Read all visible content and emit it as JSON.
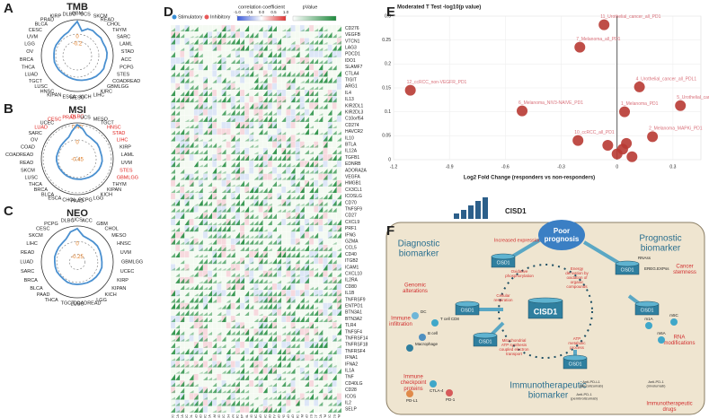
{
  "panel_letters": [
    "A",
    "B",
    "C",
    "D",
    "E",
    "F"
  ],
  "chart_data": [
    {
      "type": "radar",
      "title": "TMB",
      "color": "#4a90d0",
      "rlim": [
        -0.6,
        0.4
      ],
      "rticks": [
        -0.2,
        0
      ],
      "categories": [
        "GBM",
        "UCS",
        "SKCM",
        "READ",
        "CHOL",
        "THYM",
        "SARC",
        "LAML",
        "STAD",
        "ACC",
        "PCPG",
        "STES",
        "COADREAD",
        "GBMLGG",
        "KIRC",
        "LIHC",
        "KICH",
        "MESO",
        "ESCA",
        "KIPAN",
        "HNSC",
        "LUSC",
        "TGCT",
        "LUAD",
        "THCA",
        "BRCA",
        "OV",
        "LGG",
        "UVM",
        "CESC",
        "BLCA",
        "PRAD",
        "KIRP",
        "DLBC"
      ],
      "values": [
        0.35,
        0.1,
        0.2,
        0.22,
        0.2,
        0.22,
        0.2,
        0.22,
        0.23,
        0.22,
        0.2,
        0.22,
        0.2,
        0.18,
        0.15,
        0.12,
        0.1,
        0.08,
        0.06,
        0.05,
        0.04,
        0.04,
        0.05,
        0.05,
        0.06,
        0.05,
        0.05,
        0.06,
        0.06,
        0.05,
        0.06,
        0.08,
        0.1,
        0.2
      ],
      "highlighted": [
        "GBM"
      ]
    },
    {
      "type": "radar",
      "title": "MSI",
      "color": "#4a90d0",
      "rlim": [
        -0.5,
        0.45
      ],
      "rticks": [
        -0.45,
        0,
        {
          "value": 0.4,
          "label": "0.40"
        }
      ],
      "categories": [
        "DLBC",
        "UCS",
        "MESO",
        "TGCT",
        "HNSC",
        "STAD",
        "LIHC",
        "KIRP",
        "LAML",
        "UVM",
        "STES",
        "GBMLGG",
        "THYM",
        "KIPAN",
        "KICH",
        "LGG",
        "PCPG",
        "PAAD",
        "CHOL",
        "ESCA",
        "BLCA",
        "BRCA",
        "THCA",
        "LUSC",
        "SKCM",
        "READ",
        "COADREAD",
        "COAD",
        "OV",
        "SARC",
        "LUAD",
        "UCEC",
        "CESC",
        "PRAD"
      ],
      "values": [
        0.4,
        0.3,
        0.18,
        0.16,
        0.15,
        0.16,
        0.15,
        0.14,
        0.15,
        0.16,
        0.15,
        0.14,
        0.12,
        0.1,
        0.08,
        0.06,
        0.05,
        0.04,
        0.04,
        0.03,
        0.03,
        0.03,
        0.03,
        0.04,
        0.04,
        0.05,
        0.05,
        0.04,
        0.04,
        0.05,
        0.06,
        0.08,
        0.12,
        0.25
      ],
      "highlighted": [
        "PRAD",
        "DLBC",
        "HNSC",
        "STAD",
        "LIHC",
        "STES",
        "GBMLGG",
        "CESC",
        "LUAD"
      ]
    },
    {
      "type": "radar",
      "title": "NEO",
      "color": "#4a90d0",
      "rlim": [
        -0.4,
        0.3
      ],
      "rticks": [
        -0.25,
        0
      ],
      "categories": [
        "UCS",
        "ACC",
        "GBM",
        "CHOL",
        "MESO",
        "HNSC",
        "UVM",
        "GBMLGG",
        "UCEC",
        "KIRP",
        "KIPAN",
        "KICH",
        "LGG",
        "COADREAD",
        "LUSC",
        "TGCT",
        "THCA",
        "PAAD",
        "BLCA",
        "BRCA",
        "SARC",
        "LUAD",
        "READ",
        "LIHC",
        "SKCM",
        "CESC",
        "PCPG",
        "DLBC"
      ],
      "values": [
        0.25,
        0.12,
        0.1,
        0.1,
        0.1,
        0.09,
        0.08,
        0.08,
        0.09,
        0.08,
        0.07,
        0.06,
        0.05,
        0.04,
        0.04,
        0.04,
        0.04,
        0.03,
        0.03,
        0.04,
        0.04,
        0.04,
        0.05,
        0.05,
        0.06,
        0.07,
        0.1,
        0.2
      ],
      "highlighted": []
    },
    {
      "type": "heatmap",
      "legend": [
        "Stimulatory",
        "Inhibitory"
      ],
      "legend_colors": [
        "#3a8fd6",
        "#e85a5a"
      ],
      "colorbar_title": "correlation coefficient",
      "colorbar_ticks": [
        {
          "value": -1,
          "label": "-1.0"
        },
        -0.5,
        {
          "value": 0,
          "label": "0.0"
        },
        0.5,
        {
          "value": 1,
          "label": "1.0"
        }
      ],
      "pvalue_title": "pValue",
      "genes": [
        "CD276",
        "VEGFB",
        "VTCN1",
        "LAG3",
        "PDCD1",
        "IDO1",
        "SLAMF7",
        "CTLA4",
        "TIGIT",
        "ARG1",
        "IL4",
        "IL13",
        "KIR2DL1",
        "KIR2DL3",
        "C10orf54",
        "CD274",
        "HAVCR2",
        "IL10",
        "BTLA",
        "IL12A",
        "TGFB1",
        "EDNRB",
        "ADORA2A",
        "VEGFA",
        "HMGB1",
        "CX3CL1",
        "ICOSLG",
        "CD70",
        "TNFSF9",
        "CD27",
        "CXCL9",
        "PRF1",
        "IFNG",
        "GZMA",
        "CCL5",
        "CD40",
        "ITGB2",
        "ICAM1",
        "CXCL10",
        "IL2RA",
        "CD80",
        "IL1B",
        "TNFRSF9",
        "ENTPD1",
        "BTN3A1",
        "BTN3A2",
        "TLR4",
        "TNFSF4",
        "TNFRSF14",
        "TNFRSF18",
        "TNFRSF4",
        "IFNA1",
        "IFNA2",
        "IL1A",
        "TNF",
        "CD40LG",
        "CD28",
        "ICOS",
        "IL2",
        "SELP"
      ],
      "cancers": [
        "ACC",
        "BLCA",
        "BRCA",
        "CESC",
        "CHOL",
        "COAD",
        "COADREAD",
        "DLBC",
        "ESCA",
        "GBM",
        "GBMLGG",
        "HNSC",
        "KICH",
        "KIPAN",
        "KIRC",
        "KIRP",
        "LAML",
        "LGG",
        "LIHC",
        "LUAD",
        "LUSC",
        "MESO",
        "OV",
        "PAAD",
        "PCPG",
        "PRAD",
        "READ",
        "SARC",
        "SKCM",
        "STAD",
        "STES",
        "TGCT",
        "THCA",
        "THYM",
        "UCEC",
        "UCS",
        "UVM"
      ]
    },
    {
      "type": "scatter",
      "title": "Moderated T Test -log10(p value)",
      "x_label": "Log2 Fold Change (responders vs non-responders)",
      "color": "#b83a33",
      "label_color": "#d9707a",
      "xlim": [
        -1.2,
        0.45
      ],
      "xticks": [
        -1.2,
        -0.9,
        -0.6,
        -0.3,
        0,
        0.3
      ],
      "ylim": [
        0,
        0.3
      ],
      "yticks": [
        0,
        0.05,
        0.1,
        0.15,
        0.2,
        0.25,
        0.3
      ],
      "x": [
        -0.07,
        -0.2,
        -1.11,
        0.12,
        -0.51,
        0.04,
        0.34,
        0.19,
        -0.21,
        0.03,
        0.0,
        0.08,
        -0.05,
        0.05
      ],
      "y": [
        0.282,
        0.235,
        0.145,
        0.152,
        0.102,
        0.1,
        0.113,
        0.048,
        0.04,
        0.022,
        0.012,
        0.006,
        0.03,
        0.034
      ],
      "point_labels": [
        "11_Urothelial_cancer_all_PD1",
        "7_Melanoma_all_PD1",
        "12_ccRCC_non-VEGFR_PD1",
        "4_Urothelial_cancer_all_PDL1",
        "6_Melanoma_NIV3-NAIVE_PD1",
        "1_Melanoma_PD1",
        "5_Urothelial_cancer_non-smoking_PD1",
        "2_Melanoma_MAPKi_PD1",
        "10_ccRCC_all_PD1",
        null,
        null,
        null,
        null,
        null
      ]
    }
  ],
  "diagram": {
    "diagnostic": [
      "Diagnostic",
      "biomarker"
    ],
    "prognostic": [
      "Prognostic",
      "biomarker"
    ],
    "immunotherapeutic": [
      "Immunotherapeutic",
      "biomarker"
    ],
    "poor_prognosis": [
      "Poor",
      "prognosis"
    ],
    "top_gene": "CISD1",
    "increased": "Increased expression",
    "center_gene": "CISD1",
    "node_gene": "CISD1",
    "genomic": [
      "Genomic",
      "alterations"
    ],
    "immune_infiltration": [
      "Immune",
      "infiltration"
    ],
    "checkpoint": [
      "Immune",
      "checkpoint",
      "proteins"
    ],
    "stemness": [
      "Cancer",
      "stemness"
    ],
    "rna_mod": [
      "RNA",
      "modifications"
    ],
    "drugs": [
      "Immunotherapeutic",
      "drugs"
    ],
    "pathways": [
      {
        "lines": [
          "Oxidative",
          "phosphorylation"
        ]
      },
      {
        "lines": [
          "Energy",
          "derivation by",
          "oxidation of",
          "organic",
          "compounds"
        ]
      },
      {
        "lines": [
          "Cellular",
          "respiration"
        ]
      },
      {
        "lines": [
          "Mitochondrial",
          "ATP synthesis",
          "coupled electron",
          "transport"
        ]
      },
      {
        "lines": [
          "ATP",
          "metabolic",
          "process"
        ]
      }
    ],
    "stem_labels": [
      "RNAss",
      "EREG.EXPss"
    ],
    "rna_labels": [
      "m1A",
      "m5C",
      "m6A"
    ],
    "cells": [
      "T cell CD8",
      "DC",
      "B cell",
      "Macrophage"
    ],
    "checkpoints": [
      "PD-L1",
      "CTLA-4",
      "PD-1"
    ],
    "antibodies": [
      {
        "lines": [
          "Anti-PD-L1",
          "(atezolizumab)"
        ]
      },
      {
        "lines": [
          "Anti-PD-1",
          "(pembrolizumab)"
        ]
      },
      {
        "lines": [
          "Anti-PD-1",
          "(nivolumab)"
        ]
      }
    ]
  }
}
